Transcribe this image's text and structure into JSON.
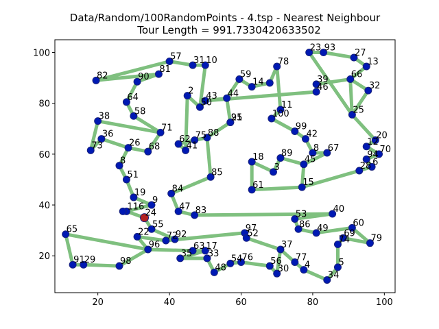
{
  "chart_data": {
    "type": "scatter",
    "title_line1": "Data/Random/100RandomPoints - 4.tsp - Nearest Neighbour",
    "title_line2": "Tour Length = 991.7330420633502",
    "xlabel": "",
    "ylabel": "",
    "xlim": [
      8,
      103
    ],
    "ylim": [
      5.5,
      105
    ],
    "xticks": [
      20,
      40,
      60,
      80,
      100
    ],
    "yticks": [
      20,
      40,
      60,
      80,
      100
    ],
    "colors": {
      "point_fill": "#0019b3",
      "point_edge": "#1a237e",
      "tour_line": "#7fc07f",
      "start_point": "#b22222"
    },
    "start_id": "24",
    "points": [
      {
        "id": "57",
        "x": 40,
        "y": 96.5
      },
      {
        "id": "31",
        "x": 46.5,
        "y": 95
      },
      {
        "id": "10",
        "x": 50,
        "y": 95
      },
      {
        "id": "82",
        "x": 19.5,
        "y": 89
      },
      {
        "id": "90",
        "x": 31,
        "y": 88.5
      },
      {
        "id": "81",
        "x": 37,
        "y": 91.5
      },
      {
        "id": "64",
        "x": 28,
        "y": 80.5
      },
      {
        "id": "58",
        "x": 30,
        "y": 75
      },
      {
        "id": "38",
        "x": 20,
        "y": 73
      },
      {
        "id": "36",
        "x": 21,
        "y": 66
      },
      {
        "id": "73",
        "x": 18,
        "y": 61.5
      },
      {
        "id": "26",
        "x": 28.5,
        "y": 62.5
      },
      {
        "id": "68",
        "x": 34,
        "y": 61
      },
      {
        "id": "71",
        "x": 37.5,
        "y": 68.5
      },
      {
        "id": "62",
        "x": 42.5,
        "y": 64
      },
      {
        "id": "41",
        "x": 44.5,
        "y": 61.5
      },
      {
        "id": "75",
        "x": 47,
        "y": 65.5
      },
      {
        "id": "88",
        "x": 50.5,
        "y": 66.5
      },
      {
        "id": "2",
        "x": 45,
        "y": 83
      },
      {
        "id": "50",
        "x": 48.5,
        "y": 78.5
      },
      {
        "id": "43",
        "x": 50,
        "y": 81
      },
      {
        "id": "44",
        "x": 56,
        "y": 82
      },
      {
        "id": "59",
        "x": 59.5,
        "y": 89.5
      },
      {
        "id": "14",
        "x": 63,
        "y": 86.5
      },
      {
        "id": "21",
        "x": 57,
        "y": 72.5
      },
      {
        "id": "95",
        "x": 57,
        "y": 72.5
      },
      {
        "id": "78",
        "x": 70,
        "y": 94.5
      },
      {
        "id": "74",
        "x": 68,
        "y": 88
      },
      {
        "id": "11",
        "x": 71,
        "y": 77.5
      },
      {
        "id": "100",
        "x": 68.5,
        "y": 74
      },
      {
        "id": "99",
        "x": 75,
        "y": 69
      },
      {
        "id": "42",
        "x": 78,
        "y": 66
      },
      {
        "id": "8",
        "x": 80,
        "y": 60.5
      },
      {
        "id": "67",
        "x": 84,
        "y": 60.5
      },
      {
        "id": "89",
        "x": 71,
        "y": 58.5
      },
      {
        "id": "45",
        "x": 77.5,
        "y": 56
      },
      {
        "id": "3",
        "x": 69,
        "y": 53
      },
      {
        "id": "18",
        "x": 63,
        "y": 57
      },
      {
        "id": "61",
        "x": 63,
        "y": 46
      },
      {
        "id": "15",
        "x": 77,
        "y": 47
      },
      {
        "id": "23",
        "x": 79,
        "y": 100
      },
      {
        "id": "93",
        "x": 83,
        "y": 100
      },
      {
        "id": "27",
        "x": 91.5,
        "y": 98
      },
      {
        "id": "13",
        "x": 95,
        "y": 94.5
      },
      {
        "id": "39",
        "x": 81,
        "y": 87.5
      },
      {
        "id": "46",
        "x": 81,
        "y": 84.5
      },
      {
        "id": "32",
        "x": 95.5,
        "y": 85
      },
      {
        "id": "66",
        "x": 90.5,
        "y": 89.5
      },
      {
        "id": "25",
        "x": 91,
        "y": 75.5
      },
      {
        "id": "20",
        "x": 97.5,
        "y": 65.5
      },
      {
        "id": "12",
        "x": 95,
        "y": 63
      },
      {
        "id": "70",
        "x": 98.5,
        "y": 60
      },
      {
        "id": "94",
        "x": 95,
        "y": 58
      },
      {
        "id": "6",
        "x": 96.5,
        "y": 55
      },
      {
        "id": "28",
        "x": 93,
        "y": 53.5
      },
      {
        "id": "85",
        "x": 51.5,
        "y": 51
      },
      {
        "id": "8b",
        "x": 26,
        "y": 55.5
      },
      {
        "id": "51",
        "x": 28,
        "y": 50
      },
      {
        "id": "84",
        "x": 40.5,
        "y": 44.5
      },
      {
        "id": "19",
        "x": 30,
        "y": 43
      },
      {
        "id": "9",
        "x": 35,
        "y": 40
      },
      {
        "id": "116",
        "x": 28,
        "y": 37.5
      },
      {
        "id": "24",
        "x": 33,
        "y": 35
      },
      {
        "id": "47",
        "x": 42.5,
        "y": 37.5
      },
      {
        "id": "83",
        "x": 47,
        "y": 36
      },
      {
        "id": "55",
        "x": 35,
        "y": 30.5
      },
      {
        "id": "22",
        "x": 31,
        "y": 27.5
      },
      {
        "id": "72",
        "x": 39,
        "y": 26
      },
      {
        "id": "92",
        "x": 41.5,
        "y": 26.5
      },
      {
        "id": "96",
        "x": 34,
        "y": 22.5
      },
      {
        "id": "65",
        "x": 11,
        "y": 28.5
      },
      {
        "id": "91",
        "x": 13,
        "y": 16.5
      },
      {
        "id": "29",
        "x": 16,
        "y": 16.5
      },
      {
        "id": "98",
        "x": 26,
        "y": 16
      },
      {
        "id": "63",
        "x": 46.5,
        "y": 22
      },
      {
        "id": "17",
        "x": 50,
        "y": 22
      },
      {
        "id": "35",
        "x": 43,
        "y": 19
      },
      {
        "id": "33",
        "x": 50.5,
        "y": 19
      },
      {
        "id": "48",
        "x": 52.5,
        "y": 13.5
      },
      {
        "id": "54",
        "x": 57,
        "y": 17
      },
      {
        "id": "76",
        "x": 60,
        "y": 17.5
      },
      {
        "id": "56",
        "x": 68,
        "y": 16
      },
      {
        "id": "30",
        "x": 70,
        "y": 13
      },
      {
        "id": "37",
        "x": 71,
        "y": 22.5
      },
      {
        "id": "77",
        "x": 75,
        "y": 17.5
      },
      {
        "id": "4",
        "x": 77.5,
        "y": 14.5
      },
      {
        "id": "34",
        "x": 84,
        "y": 10.5
      },
      {
        "id": "5",
        "x": 87,
        "y": 15.5
      },
      {
        "id": "74b",
        "x": 87,
        "y": 24.5
      },
      {
        "id": "69",
        "x": 88.5,
        "y": 27
      },
      {
        "id": "60",
        "x": 91,
        "y": 31
      },
      {
        "id": "79",
        "x": 96,
        "y": 25
      },
      {
        "id": "40",
        "x": 85.5,
        "y": 36.5
      },
      {
        "id": "53",
        "x": 75,
        "y": 34.5
      },
      {
        "id": "86",
        "x": 76,
        "y": 30.5
      },
      {
        "id": "49",
        "x": 81,
        "y": 29
      },
      {
        "id": "97",
        "x": 61,
        "y": 29
      },
      {
        "id": "52",
        "x": 61.5,
        "y": 27
      },
      {
        "id": "16b",
        "x": 27,
        "y": 37.5
      }
    ],
    "labels": [
      {
        "id": "57",
        "text": "57"
      },
      {
        "id": "31",
        "text": "31"
      },
      {
        "id": "10",
        "text": "10"
      },
      {
        "id": "82",
        "text": "82"
      },
      {
        "id": "90",
        "text": "90"
      },
      {
        "id": "81",
        "text": "81"
      },
      {
        "id": "64",
        "text": "64"
      },
      {
        "id": "58",
        "text": "58"
      },
      {
        "id": "38",
        "text": "38"
      },
      {
        "id": "36",
        "text": "36"
      },
      {
        "id": "73",
        "text": "73"
      },
      {
        "id": "26",
        "text": "26"
      },
      {
        "id": "68",
        "text": "68"
      },
      {
        "id": "71",
        "text": "71"
      },
      {
        "id": "62",
        "text": "62"
      },
      {
        "id": "41",
        "text": "41"
      },
      {
        "id": "75",
        "text": "75"
      },
      {
        "id": "88",
        "text": "88"
      },
      {
        "id": "2",
        "text": "2"
      },
      {
        "id": "50",
        "text": "50"
      },
      {
        "id": "43",
        "text": "43"
      },
      {
        "id": "44",
        "text": "44"
      },
      {
        "id": "59",
        "text": "59"
      },
      {
        "id": "14",
        "text": "14"
      },
      {
        "id": "21",
        "text": "21"
      },
      {
        "id": "95",
        "text": "95"
      },
      {
        "id": "78",
        "text": "78"
      },
      {
        "id": "11",
        "text": "11"
      },
      {
        "id": "100",
        "text": "100"
      },
      {
        "id": "99",
        "text": "99"
      },
      {
        "id": "42",
        "text": "42"
      },
      {
        "id": "8",
        "text": "8"
      },
      {
        "id": "67",
        "text": "67"
      },
      {
        "id": "89",
        "text": "89"
      },
      {
        "id": "45",
        "text": "45"
      },
      {
        "id": "3",
        "text": "3"
      },
      {
        "id": "18",
        "text": "18"
      },
      {
        "id": "61",
        "text": "61"
      },
      {
        "id": "15",
        "text": "15"
      },
      {
        "id": "23",
        "text": "23"
      },
      {
        "id": "93",
        "text": "93"
      },
      {
        "id": "27",
        "text": "27"
      },
      {
        "id": "13",
        "text": "13"
      },
      {
        "id": "39",
        "text": "39"
      },
      {
        "id": "46",
        "text": "46"
      },
      {
        "id": "32",
        "text": "32"
      },
      {
        "id": "66",
        "text": "66"
      },
      {
        "id": "25",
        "text": "25"
      },
      {
        "id": "20",
        "text": "20"
      },
      {
        "id": "12",
        "text": "12"
      },
      {
        "id": "70",
        "text": "70"
      },
      {
        "id": "94",
        "text": "94"
      },
      {
        "id": "6",
        "text": "6"
      },
      {
        "id": "28",
        "text": "28"
      },
      {
        "id": "85",
        "text": "85"
      },
      {
        "id": "8b",
        "text": "8"
      },
      {
        "id": "51",
        "text": "51"
      },
      {
        "id": "84",
        "text": "84"
      },
      {
        "id": "19",
        "text": "19"
      },
      {
        "id": "9",
        "text": "9"
      },
      {
        "id": "116",
        "text": "116"
      },
      {
        "id": "24",
        "text": "24"
      },
      {
        "id": "47",
        "text": "47"
      },
      {
        "id": "83",
        "text": "83"
      },
      {
        "id": "55",
        "text": "55"
      },
      {
        "id": "22",
        "text": "22"
      },
      {
        "id": "72",
        "text": "72"
      },
      {
        "id": "92",
        "text": "92"
      },
      {
        "id": "96",
        "text": "96"
      },
      {
        "id": "65",
        "text": "65"
      },
      {
        "id": "91",
        "text": "91"
      },
      {
        "id": "29",
        "text": "29"
      },
      {
        "id": "98",
        "text": "98"
      },
      {
        "id": "63",
        "text": "63"
      },
      {
        "id": "17",
        "text": "17"
      },
      {
        "id": "35",
        "text": "35"
      },
      {
        "id": "33",
        "text": "33"
      },
      {
        "id": "48",
        "text": "48"
      },
      {
        "id": "54",
        "text": "54"
      },
      {
        "id": "76",
        "text": "76"
      },
      {
        "id": "56",
        "text": "56"
      },
      {
        "id": "30",
        "text": "30"
      },
      {
        "id": "37",
        "text": "37"
      },
      {
        "id": "77",
        "text": "77"
      },
      {
        "id": "4",
        "text": "4"
      },
      {
        "id": "34",
        "text": "34"
      },
      {
        "id": "5",
        "text": "5"
      },
      {
        "id": "74b",
        "text": "74"
      },
      {
        "id": "69",
        "text": "69"
      },
      {
        "id": "60",
        "text": "60"
      },
      {
        "id": "79",
        "text": "79"
      },
      {
        "id": "40",
        "text": "40"
      },
      {
        "id": "53",
        "text": "53"
      },
      {
        "id": "86",
        "text": "86"
      },
      {
        "id": "49",
        "text": "49"
      },
      {
        "id": "97",
        "text": "97"
      },
      {
        "id": "52",
        "text": "52"
      }
    ],
    "tour": [
      "24",
      "116",
      "9",
      "19",
      "51",
      "8b",
      "26",
      "68",
      "71",
      "58",
      "64",
      "90",
      "81",
      "82",
      "57",
      "31",
      "10",
      "50",
      "2",
      "41",
      "62",
      "75",
      "88",
      "85",
      "84",
      "47",
      "83",
      "40",
      "53",
      "86",
      "49",
      "60",
      "79",
      "69",
      "74b",
      "5",
      "34",
      "4",
      "77",
      "37",
      "30",
      "56",
      "76",
      "54",
      "48",
      "33",
      "35",
      "17",
      "63",
      "96",
      "65",
      "91",
      "29",
      "98",
      "96",
      "22",
      "72",
      "92",
      "55",
      "24"
    ],
    "tour2": [
      "71",
      "38",
      "73",
      "36",
      "26"
    ],
    "tour3": [
      "50",
      "43",
      "44",
      "59",
      "14",
      "74",
      "78",
      "11",
      "100",
      "99",
      "42",
      "8",
      "67",
      "45",
      "89",
      "3",
      "18",
      "61",
      "15",
      "45"
    ],
    "tour4": [
      "43",
      "46",
      "39",
      "66",
      "32",
      "25",
      "23",
      "93",
      "27",
      "13",
      "66",
      "25",
      "20",
      "12",
      "70",
      "94",
      "6",
      "28",
      "15"
    ],
    "tour5": [
      "44",
      "21",
      "95",
      "88"
    ],
    "tour6": [
      "72",
      "97",
      "52",
      "37"
    ]
  }
}
